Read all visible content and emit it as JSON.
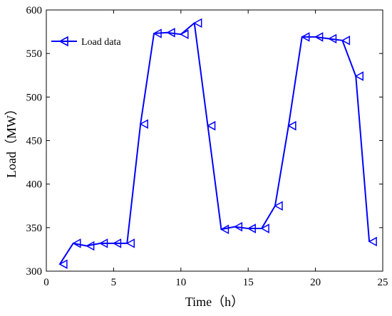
{
  "chart_data": {
    "type": "line",
    "title": "",
    "xlabel": "Time（h）",
    "ylabel": "Load（MW）",
    "xlim": [
      0,
      25
    ],
    "ylim": [
      300,
      600
    ],
    "xticks": [
      0,
      5,
      10,
      15,
      20,
      25
    ],
    "yticks": [
      300,
      350,
      400,
      450,
      500,
      550,
      600
    ],
    "grid": false,
    "legend_position": "top-left",
    "series": [
      {
        "name": "Load data",
        "color": "#0000ff",
        "marker": "triangle-left",
        "x": [
          1,
          2,
          3,
          4,
          5,
          6,
          7,
          8,
          9,
          10,
          11,
          12,
          13,
          14,
          15,
          16,
          17,
          18,
          19,
          20,
          21,
          22,
          23,
          24
        ],
        "y": [
          308,
          332,
          329,
          332,
          332,
          332,
          469,
          573,
          574,
          572,
          585,
          467,
          348,
          351,
          349,
          349,
          375,
          467,
          569,
          569,
          567,
          565,
          524,
          334
        ]
      }
    ]
  }
}
